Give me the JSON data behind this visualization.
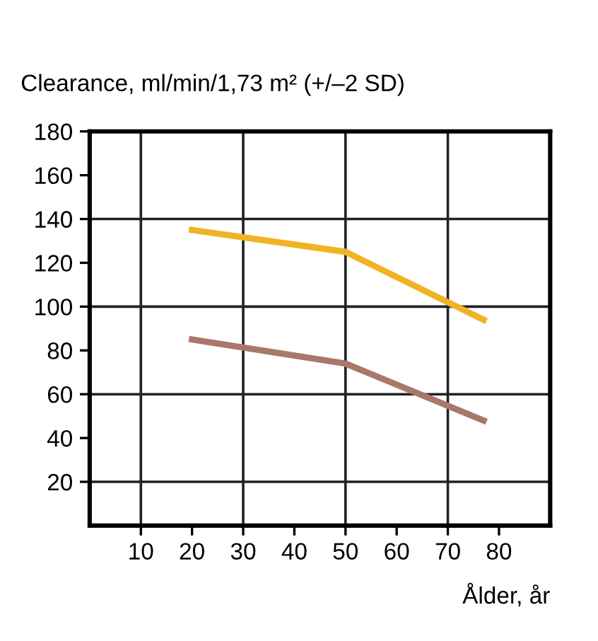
{
  "chart_data": {
    "type": "line",
    "ylabel": "Clearance, ml/min/1,73 m² (+/–2 SD)",
    "xlabel": "Ålder, år",
    "x": [
      20,
      50,
      77
    ],
    "series": [
      {
        "color": "#f0b323",
        "values": [
          135,
          125,
          94
        ]
      },
      {
        "color": "#a8786a",
        "values": [
          85,
          74,
          48
        ]
      }
    ],
    "xlim": [
      0,
      90
    ],
    "xticks": [
      10,
      20,
      30,
      40,
      50,
      60,
      70,
      80
    ],
    "ylim": [
      0,
      180
    ],
    "yticks": [
      20,
      40,
      60,
      80,
      100,
      120,
      140,
      160,
      180
    ],
    "ref_lines": [
      {
        "axis": "x",
        "value": 10,
        "color": "#222222"
      },
      {
        "axis": "x",
        "value": 30,
        "color": "#222222"
      },
      {
        "axis": "x",
        "value": 50,
        "color": "#222222"
      },
      {
        "axis": "x",
        "value": 70,
        "color": "#222222"
      },
      {
        "axis": "y",
        "value": 20,
        "color": "#222222"
      },
      {
        "axis": "y",
        "value": 60,
        "color": "#222222"
      },
      {
        "axis": "y",
        "value": 100,
        "color": "#222222"
      },
      {
        "axis": "y",
        "value": 140,
        "color": "#222222"
      }
    ],
    "grid": false,
    "legend": false,
    "marker": "none",
    "line_style": "solid"
  }
}
